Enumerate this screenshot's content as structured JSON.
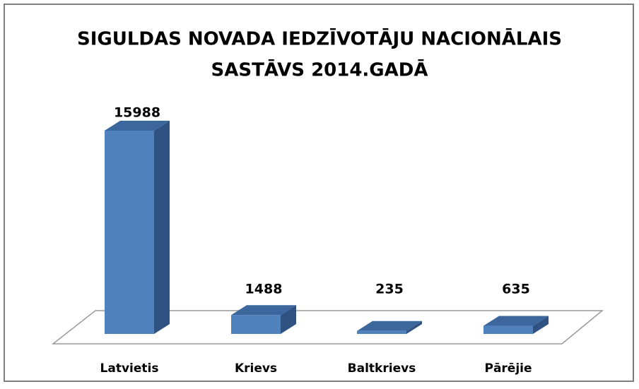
{
  "chart_data": {
    "type": "bar3d",
    "title": [
      "SIGULDAS NOVADA IEDZĪVOTĀJU NACIONĀLAIS",
      "SASTĀVS 2014.GADĀ"
    ],
    "categories": [
      "Latvietis",
      "Krievs",
      "Baltkrievs",
      "Pārējie"
    ],
    "values": [
      15988,
      1488,
      235,
      635
    ],
    "color": "#4f81bd"
  }
}
